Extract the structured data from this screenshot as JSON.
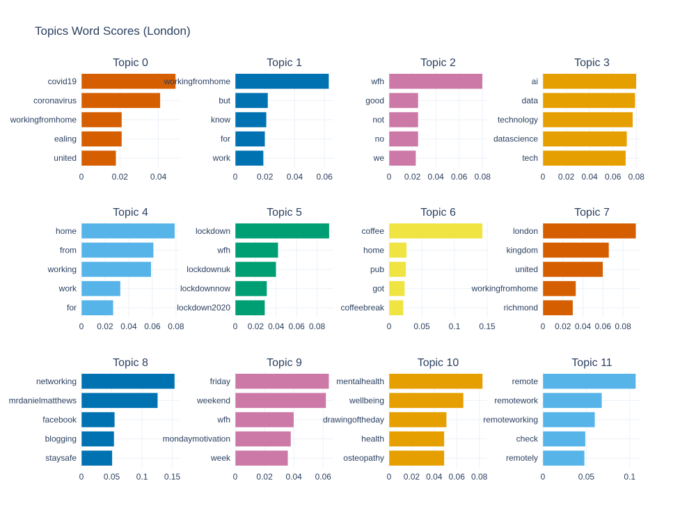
{
  "chart_data": {
    "type": "bar",
    "orientation": "horizontal",
    "title": "Topics Word Scores (London)",
    "colors": [
      "#D55E00",
      "#0072B2",
      "#CC79A7",
      "#E69F00",
      "#56B4E9",
      "#009E73",
      "#F0E442"
    ],
    "subplots": [
      {
        "title": "Topic 0",
        "color": "#D55E00",
        "categories": [
          "covid19",
          "coronavirus",
          "workingfromhome",
          "ealing",
          "united"
        ],
        "values": [
          0.049,
          0.041,
          0.021,
          0.021,
          0.018
        ],
        "xlim": [
          0,
          0.051
        ],
        "ticks": [
          0,
          0.02,
          0.04
        ],
        "tick_labels": [
          "0",
          "0.02",
          "0.04"
        ]
      },
      {
        "title": "Topic 1",
        "color": "#0072B2",
        "categories": [
          "workingfromhome",
          "but",
          "know",
          "for",
          "work"
        ],
        "values": [
          0.063,
          0.022,
          0.021,
          0.02,
          0.019
        ],
        "xlim": [
          0,
          0.066
        ],
        "ticks": [
          0,
          0.02,
          0.04,
          0.06
        ],
        "tick_labels": [
          "0",
          "0.02",
          "0.04",
          "0.06"
        ]
      },
      {
        "title": "Topic 2",
        "color": "#CC79A7",
        "categories": [
          "wfh",
          "good",
          "not",
          "no",
          "we"
        ],
        "values": [
          0.08,
          0.025,
          0.025,
          0.025,
          0.023
        ],
        "xlim": [
          0,
          0.084
        ],
        "ticks": [
          0,
          0.02,
          0.04,
          0.06,
          0.08
        ],
        "tick_labels": [
          "0",
          "0.02",
          "0.04",
          "0.06",
          "0.08"
        ]
      },
      {
        "title": "Topic 3",
        "color": "#E69F00",
        "categories": [
          "ai",
          "data",
          "technology",
          "datascience",
          "tech"
        ],
        "values": [
          0.08,
          0.079,
          0.077,
          0.072,
          0.071
        ],
        "xlim": [
          0,
          0.084
        ],
        "ticks": [
          0,
          0.02,
          0.04,
          0.06,
          0.08
        ],
        "tick_labels": [
          "0",
          "0.02",
          "0.04",
          "0.06",
          "0.08"
        ]
      },
      {
        "title": "Topic 4",
        "color": "#56B4E9",
        "categories": [
          "home",
          "from",
          "working",
          "work",
          "for"
        ],
        "values": [
          0.079,
          0.061,
          0.059,
          0.033,
          0.027
        ],
        "xlim": [
          0,
          0.083
        ],
        "ticks": [
          0,
          0.02,
          0.04,
          0.06,
          0.08
        ],
        "tick_labels": [
          "0",
          "0.02",
          "0.04",
          "0.06",
          "0.08"
        ]
      },
      {
        "title": "Topic 5",
        "color": "#009E73",
        "categories": [
          "lockdown",
          "wfh",
          "lockdownuk",
          "lockdownnow",
          "lockdown2020"
        ],
        "values": [
          0.092,
          0.042,
          0.04,
          0.031,
          0.029
        ],
        "xlim": [
          0,
          0.096
        ],
        "ticks": [
          0,
          0.02,
          0.04,
          0.06,
          0.08
        ],
        "tick_labels": [
          "0",
          "0.02",
          "0.04",
          "0.06",
          "0.08"
        ]
      },
      {
        "title": "Topic 6",
        "color": "#F0E442",
        "categories": [
          "coffee",
          "home",
          "pub",
          "got",
          "coffeebreak"
        ],
        "values": [
          0.143,
          0.027,
          0.026,
          0.024,
          0.022
        ],
        "xlim": [
          0,
          0.15
        ],
        "ticks": [
          0,
          0.05,
          0.1,
          0.15
        ],
        "tick_labels": [
          "0",
          "0.05",
          "0.1",
          "0.15"
        ]
      },
      {
        "title": "Topic 7",
        "color": "#D55E00",
        "categories": [
          "london",
          "kingdom",
          "united",
          "workingfromhome",
          "richmond"
        ],
        "values": [
          0.093,
          0.066,
          0.06,
          0.033,
          0.03
        ],
        "xlim": [
          0,
          0.098
        ],
        "ticks": [
          0,
          0.02,
          0.04,
          0.06,
          0.08
        ],
        "tick_labels": [
          "0",
          "0.02",
          "0.04",
          "0.06",
          "0.08"
        ]
      },
      {
        "title": "Topic 8",
        "color": "#0072B2",
        "categories": [
          "networking",
          "mrdanielmatthews",
          "facebook",
          "blogging",
          "staysafe"
        ],
        "values": [
          0.154,
          0.126,
          0.055,
          0.054,
          0.051
        ],
        "xlim": [
          0,
          0.162
        ],
        "ticks": [
          0,
          0.05,
          0.1,
          0.15
        ],
        "tick_labels": [
          "0",
          "0.05",
          "0.1",
          "0.15"
        ]
      },
      {
        "title": "Topic 9",
        "color": "#CC79A7",
        "categories": [
          "friday",
          "weekend",
          "wfh",
          "mondaymotivation",
          "week"
        ],
        "values": [
          0.064,
          0.062,
          0.04,
          0.038,
          0.036
        ],
        "xlim": [
          0,
          0.067
        ],
        "ticks": [
          0,
          0.02,
          0.04,
          0.06
        ],
        "tick_labels": [
          "0",
          "0.02",
          "0.04",
          "0.06"
        ]
      },
      {
        "title": "Topic 10",
        "color": "#E69F00",
        "categories": [
          "mentalhealth",
          "wellbeing",
          "drawingoftheday",
          "health",
          "osteopathy"
        ],
        "values": [
          0.083,
          0.066,
          0.051,
          0.049,
          0.049
        ],
        "xlim": [
          0,
          0.087
        ],
        "ticks": [
          0,
          0.02,
          0.04,
          0.06,
          0.08
        ],
        "tick_labels": [
          "0",
          "0.02",
          "0.04",
          "0.06",
          "0.08"
        ]
      },
      {
        "title": "Topic 11",
        "color": "#56B4E9",
        "categories": [
          "remote",
          "remotework",
          "remoteworking",
          "check",
          "remotely"
        ],
        "values": [
          0.107,
          0.068,
          0.06,
          0.049,
          0.048
        ],
        "xlim": [
          0,
          0.113
        ],
        "ticks": [
          0,
          0.05,
          0.1
        ],
        "tick_labels": [
          "0",
          "0.05",
          "0.1"
        ]
      }
    ]
  }
}
